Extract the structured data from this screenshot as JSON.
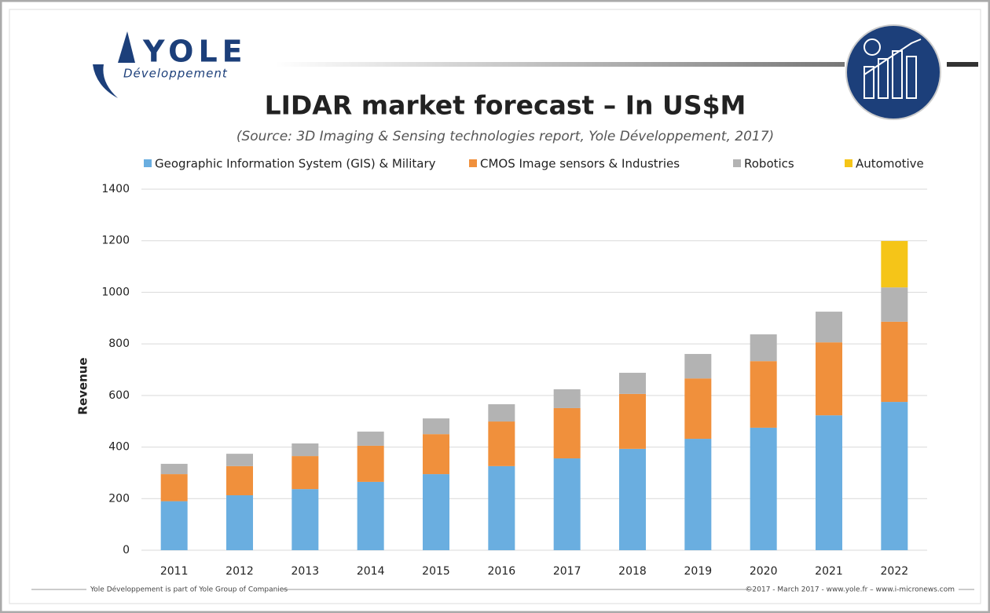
{
  "logo": {
    "name": "YOLE",
    "subtitle": "Développement"
  },
  "chart_data": {
    "type": "bar",
    "stacked": true,
    "title": "LIDAR market forecast – In US$M",
    "subtitle": "(Source: 3D Imaging & Sensing technologies report, Yole Développement, 2017)",
    "y_label": "Revenue",
    "categories": [
      "2011",
      "2012",
      "2013",
      "2014",
      "2015",
      "2016",
      "2017",
      "2018",
      "2019",
      "2020",
      "2021",
      "2022"
    ],
    "series": [
      {
        "name": "Geographic Information System (GIS) & Military",
        "color": "#6aaee0",
        "values": [
          190,
          213,
          237,
          265,
          295,
          326,
          356,
          393,
          432,
          475,
          523,
          575
        ]
      },
      {
        "name": "CMOS Image sensors & Industries",
        "color": "#f0903c",
        "values": [
          105,
          113,
          128,
          140,
          155,
          173,
          195,
          213,
          234,
          258,
          283,
          311
        ]
      },
      {
        "name": "Robotics",
        "color": "#b3b3b3",
        "values": [
          40,
          48,
          49,
          55,
          61,
          67,
          73,
          82,
          95,
          104,
          119,
          133
        ]
      },
      {
        "name": "Automotive",
        "color": "#f5c518",
        "values": [
          0,
          0,
          0,
          0,
          0,
          0,
          0,
          0,
          0,
          0,
          0,
          180
        ]
      }
    ],
    "ylim": [
      0,
      1400
    ],
    "yticks": [
      0,
      200,
      400,
      600,
      800,
      1000,
      1200,
      1400
    ],
    "grid": true
  },
  "footer": {
    "left": "Yole Développement is part of Yole Group of Companies",
    "right": "©2017 - March 2017 - www.yole.fr – www.i-micronews.com"
  }
}
